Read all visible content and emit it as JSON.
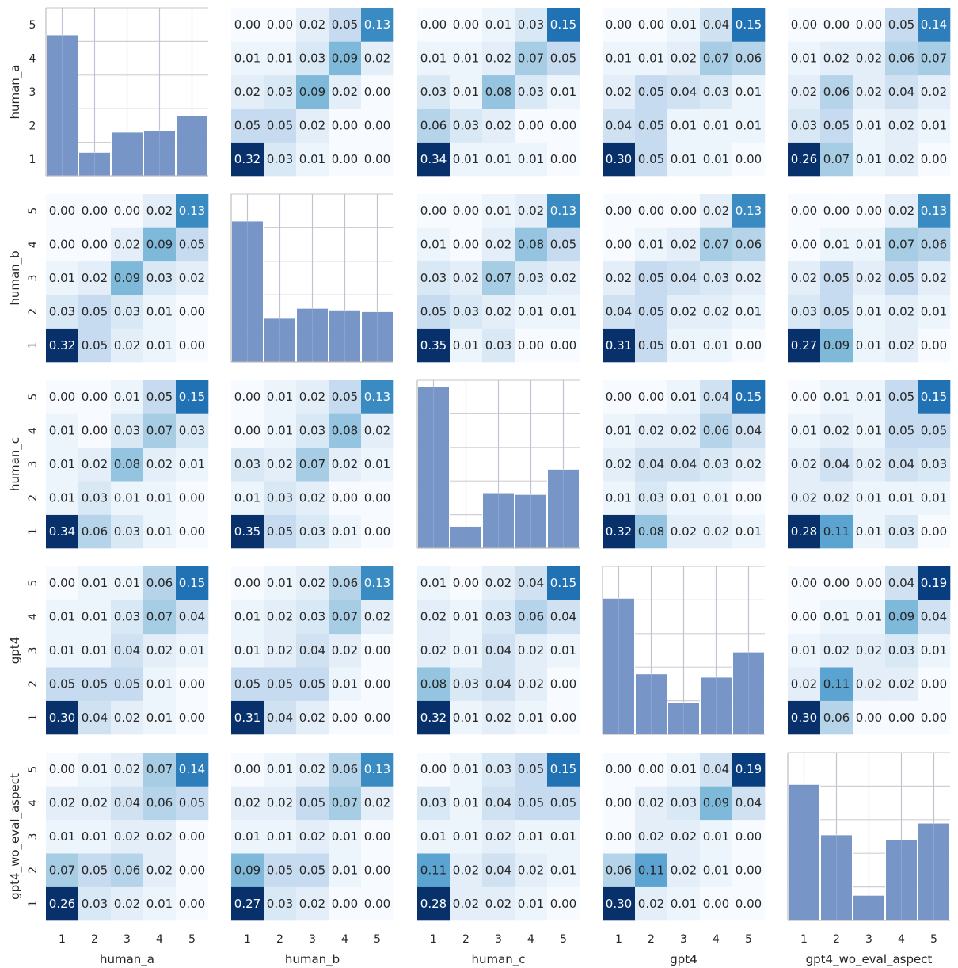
{
  "chart_data": {
    "type": "heatmap",
    "layout": "pairplot-grid",
    "variables": [
      "human_a",
      "human_b",
      "human_c",
      "gpt4",
      "gpt4_wo_eval_aspect"
    ],
    "categories": [
      1,
      2,
      3,
      4,
      5
    ],
    "row_tick_labels": [
      "1",
      "2",
      "3",
      "4",
      "5"
    ],
    "col_tick_labels": [
      "1",
      "2",
      "3",
      "4",
      "5"
    ],
    "colormap": "Blues",
    "value_range": [
      0,
      0.2
    ],
    "histogram_color": "#7090c4",
    "grid": true,
    "matrices": {
      "0-1": [
        [
          0.32,
          0.03,
          0.01,
          0.0,
          0.0
        ],
        [
          0.05,
          0.05,
          0.02,
          0.0,
          0.0
        ],
        [
          0.02,
          0.03,
          0.09,
          0.02,
          0.0
        ],
        [
          0.01,
          0.01,
          0.03,
          0.09,
          0.02
        ],
        [
          0.0,
          0.0,
          0.02,
          0.05,
          0.13
        ]
      ],
      "0-2": [
        [
          0.34,
          0.01,
          0.01,
          0.01,
          0.0
        ],
        [
          0.06,
          0.03,
          0.02,
          0.0,
          0.0
        ],
        [
          0.03,
          0.01,
          0.08,
          0.03,
          0.01
        ],
        [
          0.01,
          0.01,
          0.02,
          0.07,
          0.05
        ],
        [
          0.0,
          0.0,
          0.01,
          0.03,
          0.15
        ]
      ],
      "0-3": [
        [
          0.3,
          0.05,
          0.01,
          0.01,
          0.0
        ],
        [
          0.04,
          0.05,
          0.01,
          0.01,
          0.01
        ],
        [
          0.02,
          0.05,
          0.04,
          0.03,
          0.01
        ],
        [
          0.01,
          0.01,
          0.02,
          0.07,
          0.06
        ],
        [
          0.0,
          0.0,
          0.01,
          0.04,
          0.15
        ]
      ],
      "0-4": [
        [
          0.26,
          0.07,
          0.01,
          0.02,
          0.0
        ],
        [
          0.03,
          0.05,
          0.01,
          0.02,
          0.01
        ],
        [
          0.02,
          0.06,
          0.02,
          0.04,
          0.02
        ],
        [
          0.01,
          0.02,
          0.02,
          0.06,
          0.07
        ],
        [
          0.0,
          0.0,
          0.0,
          0.05,
          0.14
        ]
      ],
      "1-0": [
        [
          0.32,
          0.05,
          0.02,
          0.01,
          0.0
        ],
        [
          0.03,
          0.05,
          0.03,
          0.01,
          0.0
        ],
        [
          0.01,
          0.02,
          0.09,
          0.03,
          0.02
        ],
        [
          0.0,
          0.0,
          0.02,
          0.09,
          0.05
        ],
        [
          0.0,
          0.0,
          0.0,
          0.02,
          0.13
        ]
      ],
      "1-2": [
        [
          0.35,
          0.01,
          0.03,
          0.0,
          0.0
        ],
        [
          0.05,
          0.03,
          0.02,
          0.01,
          0.01
        ],
        [
          0.03,
          0.02,
          0.07,
          0.03,
          0.02
        ],
        [
          0.01,
          0.0,
          0.02,
          0.08,
          0.05
        ],
        [
          0.0,
          0.0,
          0.01,
          0.02,
          0.13
        ]
      ],
      "1-3": [
        [
          0.31,
          0.05,
          0.01,
          0.01,
          0.0
        ],
        [
          0.04,
          0.05,
          0.02,
          0.02,
          0.01
        ],
        [
          0.02,
          0.05,
          0.04,
          0.03,
          0.02
        ],
        [
          0.0,
          0.01,
          0.02,
          0.07,
          0.06
        ],
        [
          0.0,
          0.0,
          0.0,
          0.02,
          0.13
        ]
      ],
      "1-4": [
        [
          0.27,
          0.09,
          0.01,
          0.02,
          0.0
        ],
        [
          0.03,
          0.05,
          0.01,
          0.02,
          0.01
        ],
        [
          0.02,
          0.05,
          0.02,
          0.05,
          0.02
        ],
        [
          0.0,
          0.01,
          0.01,
          0.07,
          0.06
        ],
        [
          0.0,
          0.0,
          0.0,
          0.02,
          0.13
        ]
      ],
      "2-0": [
        [
          0.34,
          0.06,
          0.03,
          0.01,
          0.0
        ],
        [
          0.01,
          0.03,
          0.01,
          0.01,
          0.0
        ],
        [
          0.01,
          0.02,
          0.08,
          0.02,
          0.01
        ],
        [
          0.01,
          0.0,
          0.03,
          0.07,
          0.03
        ],
        [
          0.0,
          0.0,
          0.01,
          0.05,
          0.15
        ]
      ],
      "2-1": [
        [
          0.35,
          0.05,
          0.03,
          0.01,
          0.0
        ],
        [
          0.01,
          0.03,
          0.02,
          0.0,
          0.0
        ],
        [
          0.03,
          0.02,
          0.07,
          0.02,
          0.01
        ],
        [
          0.0,
          0.01,
          0.03,
          0.08,
          0.02
        ],
        [
          0.0,
          0.01,
          0.02,
          0.05,
          0.13
        ]
      ],
      "2-3": [
        [
          0.32,
          0.08,
          0.02,
          0.02,
          0.01
        ],
        [
          0.01,
          0.03,
          0.01,
          0.01,
          0.0
        ],
        [
          0.02,
          0.04,
          0.04,
          0.03,
          0.02
        ],
        [
          0.01,
          0.02,
          0.02,
          0.06,
          0.04
        ],
        [
          0.0,
          0.0,
          0.01,
          0.04,
          0.15
        ]
      ],
      "2-4": [
        [
          0.28,
          0.11,
          0.01,
          0.03,
          0.0
        ],
        [
          0.02,
          0.02,
          0.01,
          0.01,
          0.01
        ],
        [
          0.02,
          0.04,
          0.02,
          0.04,
          0.03
        ],
        [
          0.01,
          0.02,
          0.01,
          0.05,
          0.05
        ],
        [
          0.0,
          0.01,
          0.01,
          0.05,
          0.15
        ]
      ],
      "3-0": [
        [
          0.3,
          0.04,
          0.02,
          0.01,
          0.0
        ],
        [
          0.05,
          0.05,
          0.05,
          0.01,
          0.0
        ],
        [
          0.01,
          0.01,
          0.04,
          0.02,
          0.01
        ],
        [
          0.01,
          0.01,
          0.03,
          0.07,
          0.04
        ],
        [
          0.0,
          0.01,
          0.01,
          0.06,
          0.15
        ]
      ],
      "3-1": [
        [
          0.31,
          0.04,
          0.02,
          0.0,
          0.0
        ],
        [
          0.05,
          0.05,
          0.05,
          0.01,
          0.0
        ],
        [
          0.01,
          0.02,
          0.04,
          0.02,
          0.0
        ],
        [
          0.01,
          0.02,
          0.03,
          0.07,
          0.02
        ],
        [
          0.0,
          0.01,
          0.02,
          0.06,
          0.13
        ]
      ],
      "3-2": [
        [
          0.32,
          0.01,
          0.02,
          0.01,
          0.0
        ],
        [
          0.08,
          0.03,
          0.04,
          0.02,
          0.0
        ],
        [
          0.02,
          0.01,
          0.04,
          0.02,
          0.01
        ],
        [
          0.02,
          0.01,
          0.03,
          0.06,
          0.04
        ],
        [
          0.01,
          0.0,
          0.02,
          0.04,
          0.15
        ]
      ],
      "3-4": [
        [
          0.3,
          0.06,
          0.0,
          0.0,
          0.0
        ],
        [
          0.02,
          0.11,
          0.02,
          0.02,
          0.0
        ],
        [
          0.01,
          0.02,
          0.02,
          0.03,
          0.01
        ],
        [
          0.0,
          0.01,
          0.01,
          0.09,
          0.04
        ],
        [
          0.0,
          0.0,
          0.0,
          0.04,
          0.19
        ]
      ],
      "4-0": [
        [
          0.26,
          0.03,
          0.02,
          0.01,
          0.0
        ],
        [
          0.07,
          0.05,
          0.06,
          0.02,
          0.0
        ],
        [
          0.01,
          0.01,
          0.02,
          0.02,
          0.0
        ],
        [
          0.02,
          0.02,
          0.04,
          0.06,
          0.05
        ],
        [
          0.0,
          0.01,
          0.02,
          0.07,
          0.14
        ]
      ],
      "4-1": [
        [
          0.27,
          0.03,
          0.02,
          0.0,
          0.0
        ],
        [
          0.09,
          0.05,
          0.05,
          0.01,
          0.0
        ],
        [
          0.01,
          0.01,
          0.02,
          0.01,
          0.0
        ],
        [
          0.02,
          0.02,
          0.05,
          0.07,
          0.02
        ],
        [
          0.0,
          0.01,
          0.02,
          0.06,
          0.13
        ]
      ],
      "4-2": [
        [
          0.28,
          0.02,
          0.02,
          0.01,
          0.0
        ],
        [
          0.11,
          0.02,
          0.04,
          0.02,
          0.01
        ],
        [
          0.01,
          0.01,
          0.02,
          0.01,
          0.01
        ],
        [
          0.03,
          0.01,
          0.04,
          0.05,
          0.05
        ],
        [
          0.0,
          0.01,
          0.03,
          0.05,
          0.15
        ]
      ],
      "4-3": [
        [
          0.3,
          0.02,
          0.01,
          0.0,
          0.0
        ],
        [
          0.06,
          0.11,
          0.02,
          0.01,
          0.0
        ],
        [
          0.0,
          0.02,
          0.02,
          0.01,
          0.0
        ],
        [
          0.0,
          0.02,
          0.03,
          0.09,
          0.04
        ],
        [
          0.0,
          0.0,
          0.01,
          0.04,
          0.19
        ]
      ]
    },
    "histograms": {
      "human_a": [
        0.42,
        0.07,
        0.13,
        0.135,
        0.18
      ],
      "human_b": [
        0.42,
        0.13,
        0.16,
        0.155,
        0.15
      ],
      "human_c": [
        0.48,
        0.065,
        0.165,
        0.16,
        0.235
      ],
      "gpt4": [
        0.405,
        0.18,
        0.095,
        0.17,
        0.245
      ],
      "gpt4_wo_eval_aspect": [
        0.405,
        0.255,
        0.075,
        0.24,
        0.29
      ]
    },
    "histogram_ylim": [
      0,
      0.5
    ]
  }
}
